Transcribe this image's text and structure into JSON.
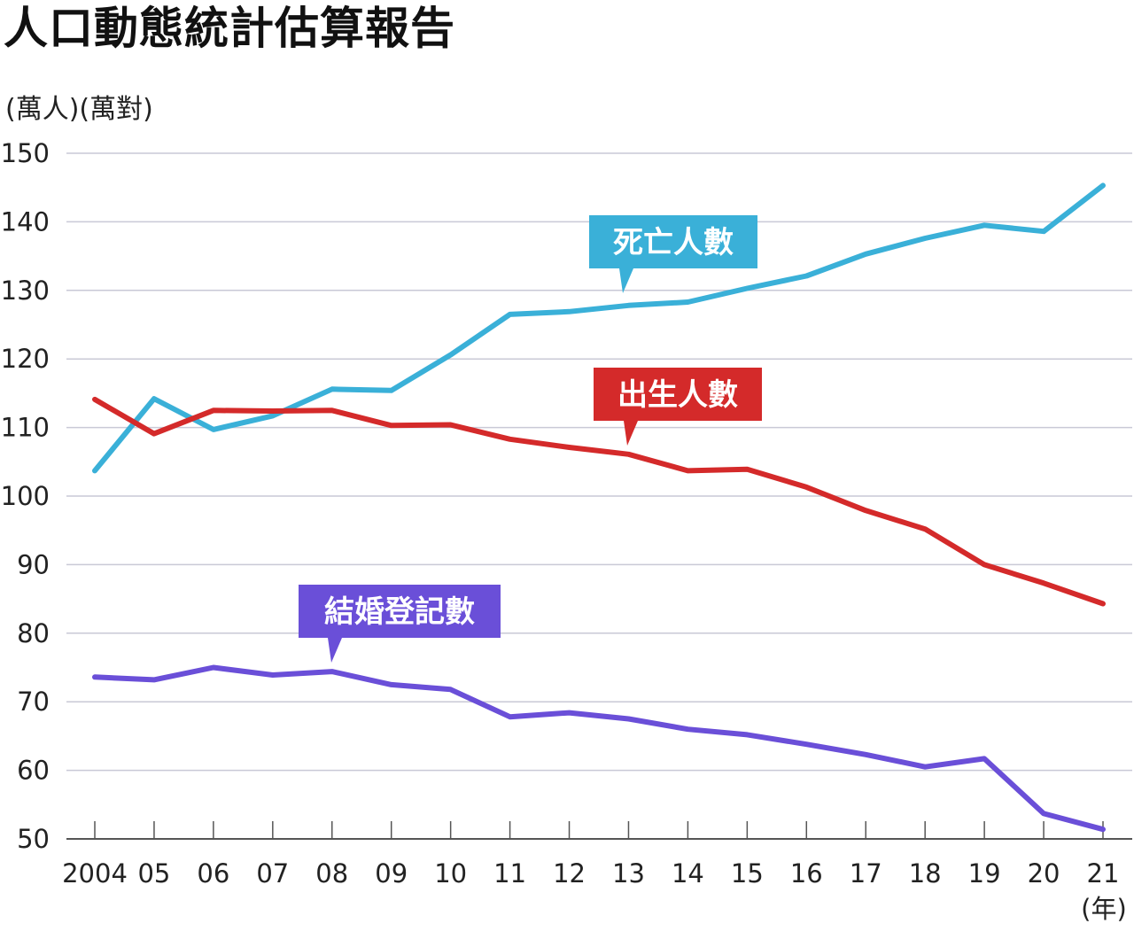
{
  "title": "人口動態統計估算報告",
  "unit_label": "(萬人)(萬對)",
  "chart_data": {
    "type": "line",
    "title": "人口動態統計估算報告",
    "ylabel": "(萬人)(萬對)",
    "xlabel": "(年)",
    "ylim": [
      50,
      150
    ],
    "yticks": [
      50,
      60,
      70,
      80,
      90,
      100,
      110,
      120,
      130,
      140,
      150
    ],
    "categories": [
      "2004",
      "05",
      "06",
      "07",
      "08",
      "09",
      "10",
      "11",
      "12",
      "13",
      "14",
      "15",
      "16",
      "17",
      "18",
      "19",
      "20",
      "21"
    ],
    "grid": true,
    "series": [
      {
        "name": "死亡人數",
        "color": "#3ab0d8",
        "values": [
          103.7,
          114.2,
          109.7,
          111.7,
          115.6,
          115.4,
          120.6,
          126.5,
          126.9,
          127.8,
          128.3,
          130.3,
          132.1,
          135.3,
          137.6,
          139.5,
          138.6,
          145.3
        ]
      },
      {
        "name": "出生人數",
        "color": "#d42a2a",
        "values": [
          114.1,
          109.1,
          112.5,
          112.4,
          112.5,
          110.3,
          110.4,
          108.3,
          107.1,
          106.1,
          103.7,
          103.9,
          101.3,
          97.9,
          95.2,
          90.0,
          87.3,
          84.3
        ]
      },
      {
        "name": "結婚登記數",
        "color": "#6a4fd8",
        "values": [
          73.6,
          73.2,
          75.0,
          73.9,
          74.4,
          72.5,
          71.8,
          67.8,
          68.4,
          67.5,
          66.0,
          65.2,
          63.8,
          62.3,
          60.5,
          61.7,
          53.7,
          51.4
        ]
      }
    ]
  }
}
